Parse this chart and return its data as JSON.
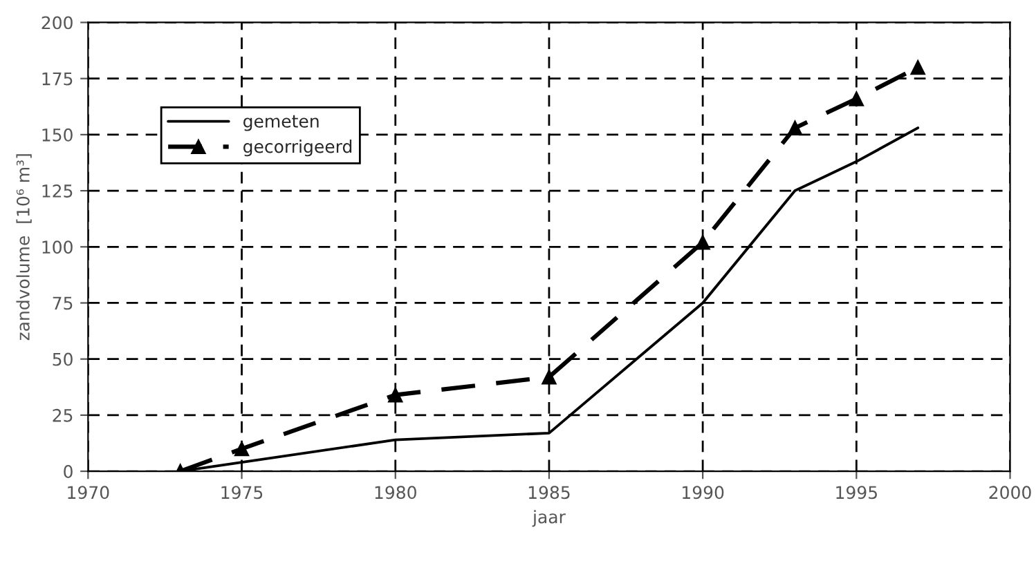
{
  "chart_data": {
    "type": "line",
    "xlabel": "jaar",
    "ylabel": "zandvolume  [10⁶ m³]",
    "xlim": [
      1970,
      2000
    ],
    "xticks": [
      1970,
      1975,
      1980,
      1985,
      1990,
      1995,
      2000
    ],
    "ylim": [
      0,
      200
    ],
    "yticks": [
      0,
      25,
      50,
      75,
      100,
      125,
      150,
      175,
      200
    ],
    "grid": true,
    "legend": "top left",
    "series": [
      {
        "name": "gemeten",
        "color": "#000000",
        "line_style": "solid",
        "marker": "none",
        "x": [
          1973,
          1975,
          1980,
          1985,
          1990,
          1993,
          1995,
          1997
        ],
        "values": [
          0,
          4,
          14,
          17,
          75,
          125,
          138,
          153
        ]
      },
      {
        "name": "gecorrigeerd",
        "color": "#000000",
        "line_style": "dashed",
        "marker": "triangle",
        "x": [
          1973,
          1975,
          1980,
          1985,
          1990,
          1993,
          1995,
          1997
        ],
        "values": [
          0,
          10,
          34,
          42,
          102,
          153,
          166,
          180
        ]
      }
    ]
  }
}
